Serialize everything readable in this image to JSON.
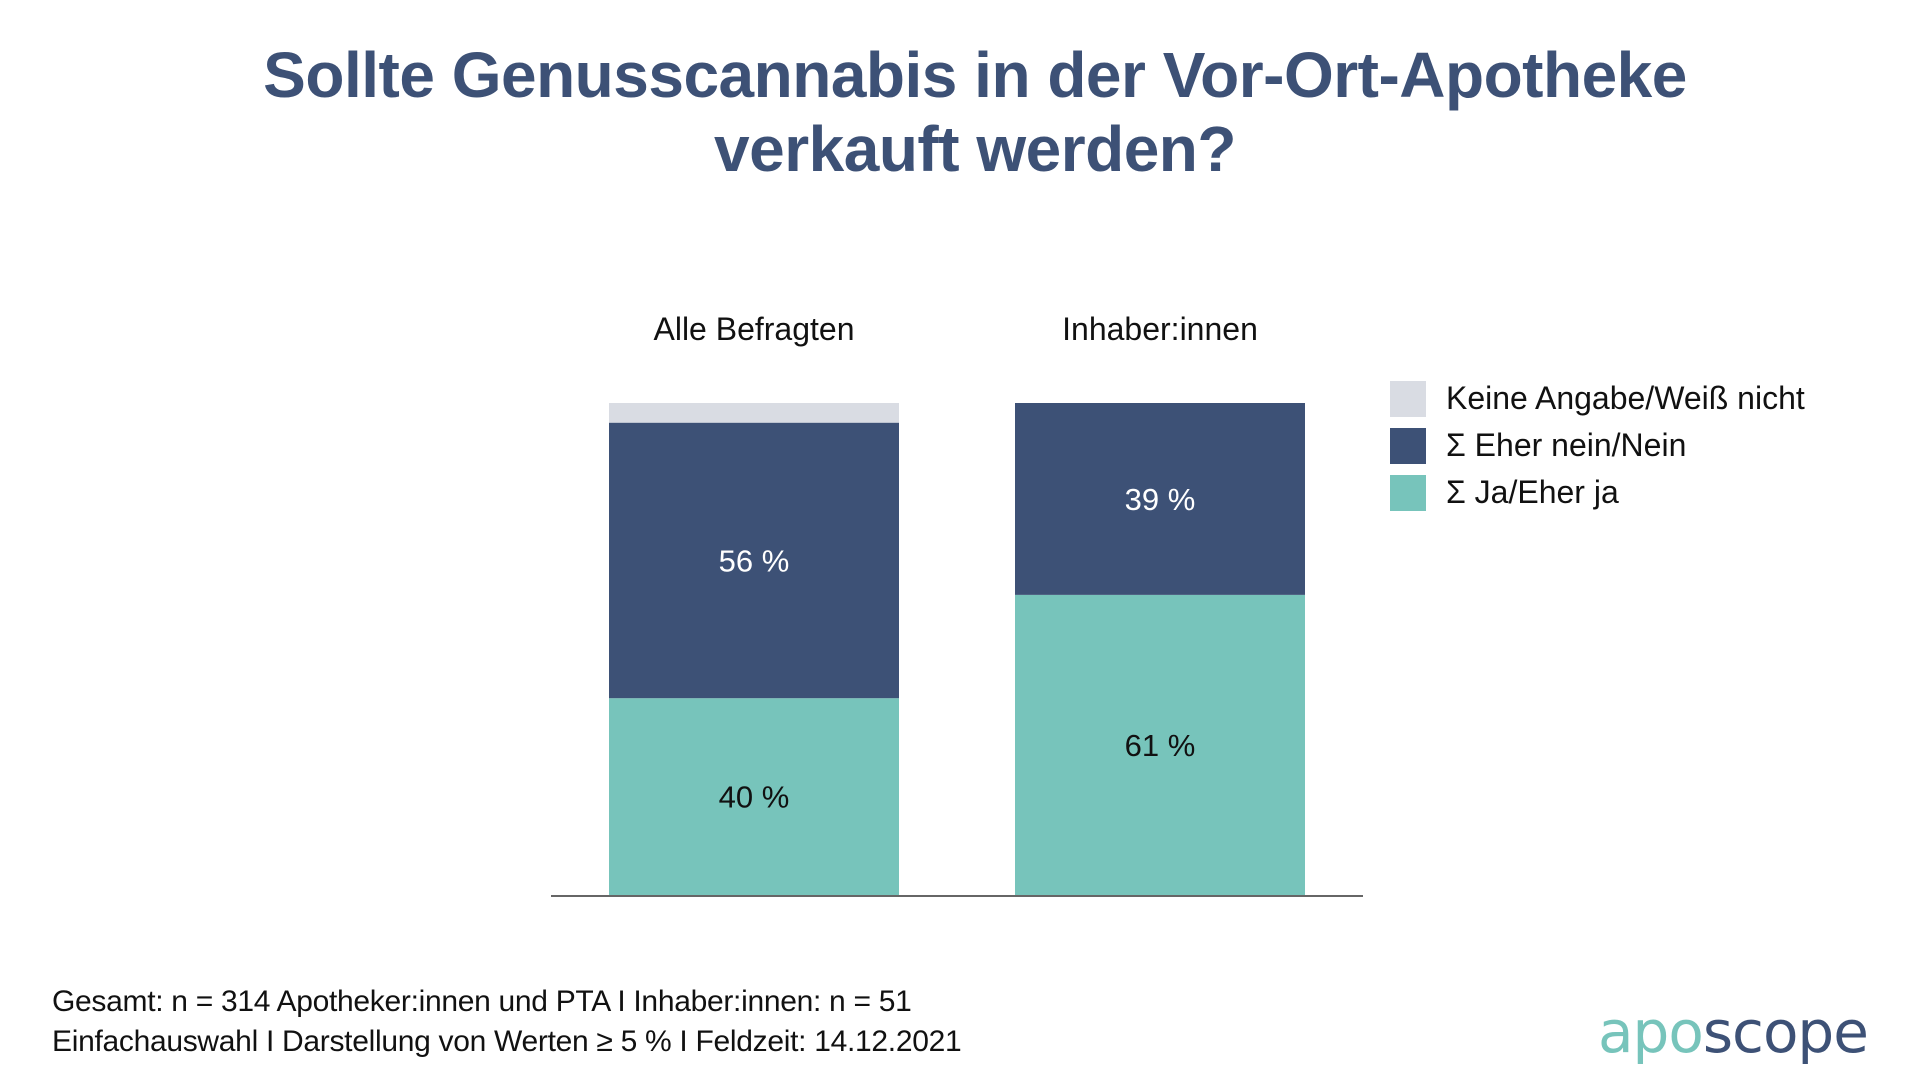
{
  "title": {
    "line1": "Sollte Genusscannabis in der Vor-Ort-Apotheke",
    "line2": "verkauft werden?"
  },
  "colors": {
    "title": "#3d5176",
    "keine_angabe": "#d9dce3",
    "nein": "#3d5176",
    "ja": "#77c4bb",
    "axis": "#666666",
    "label_dark": "#111111",
    "label_light": "#ffffff"
  },
  "chart_data": {
    "type": "bar",
    "stacked": true,
    "title": "Sollte Genusscannabis in der Vor-Ort-Apotheke verkauft werden?",
    "categories": [
      "Alle Befragten",
      "Inhaber:innen"
    ],
    "series": [
      {
        "name": "Σ Ja/Eher ja",
        "key": "ja",
        "values": [
          40,
          61
        ],
        "labels": [
          "40 %",
          "61 %"
        ]
      },
      {
        "name": "Σ Eher nein/Nein",
        "key": "nein",
        "values": [
          56,
          39
        ],
        "labels": [
          "56 %",
          "39 %"
        ]
      },
      {
        "name": "Keine Angabe/Weiß nicht",
        "key": "keine_angabe",
        "values": [
          4,
          0
        ],
        "labels": [
          "",
          ""
        ]
      }
    ],
    "ylim": [
      0,
      100
    ],
    "unit": "%",
    "xlabel": "",
    "ylabel": "",
    "grid": false,
    "legend_position": "right",
    "data_label_note": "Darstellung von Werten ≥ 5 %"
  },
  "legend": {
    "items": [
      {
        "label": "Keine Angabe/Weiß nicht",
        "key": "keine_angabe"
      },
      {
        "label": " Σ Eher nein/Nein",
        "key": "nein"
      },
      {
        "label": " Σ Ja/Eher ja",
        "key": "ja"
      }
    ]
  },
  "footnote": {
    "line1": "Gesamt: n = 314 Apotheker:innen und PTA I Inhaber:innen: n = 51",
    "line2": "Einfachauswahl I Darstellung von Werten ≥ 5 % I Feldzeit: 14.12.2021"
  },
  "logo": {
    "part1": "apo",
    "part2": "scope"
  }
}
